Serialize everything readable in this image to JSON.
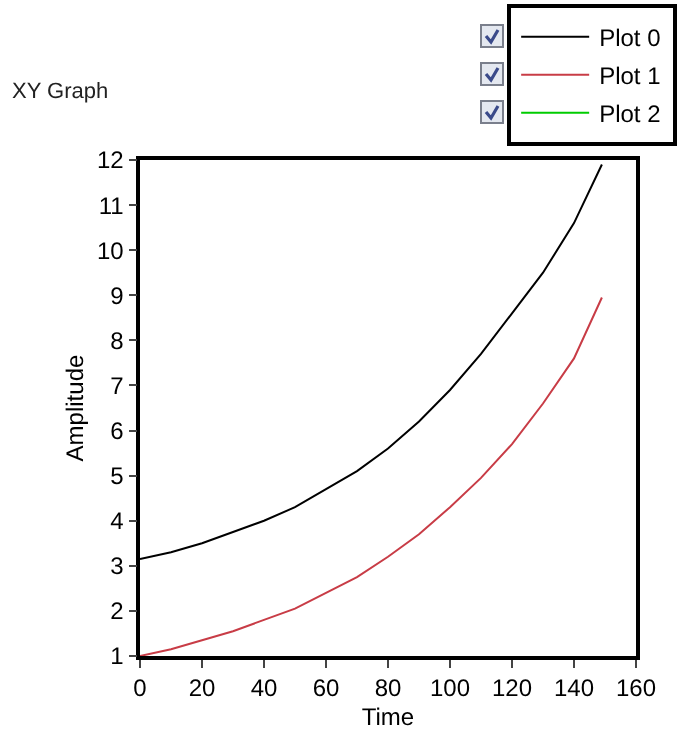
{
  "chart_data": {
    "type": "line",
    "title": "XY Graph",
    "xlabel": "Time",
    "ylabel": "Amplitude",
    "x": [
      0,
      10,
      20,
      30,
      40,
      50,
      60,
      70,
      80,
      90,
      100,
      110,
      120,
      130,
      140,
      149
    ],
    "series": [
      {
        "name": "Plot 0",
        "color": "#000000",
        "values": [
          3.15,
          3.3,
          3.5,
          3.75,
          4.0,
          4.3,
          4.7,
          5.1,
          5.6,
          6.2,
          6.9,
          7.7,
          8.6,
          9.5,
          10.6,
          11.9
        ]
      },
      {
        "name": "Plot 1",
        "color": "#c83c46",
        "values": [
          1.0,
          1.15,
          1.35,
          1.55,
          1.8,
          2.05,
          2.4,
          2.75,
          3.2,
          3.7,
          4.3,
          4.95,
          5.7,
          6.6,
          7.6,
          8.95
        ]
      },
      {
        "name": "Plot 2",
        "color": "#00cc00",
        "values": [
          null,
          null,
          null,
          null,
          null,
          null,
          null,
          null,
          null,
          null,
          null,
          null,
          null,
          null,
          null,
          null
        ]
      }
    ],
    "xlim": [
      0,
      160
    ],
    "xticks": [
      0,
      20,
      40,
      60,
      80,
      100,
      120,
      140,
      160
    ],
    "ylim": [
      1,
      12
    ],
    "yticks": [
      1,
      2,
      3,
      4,
      5,
      6,
      7,
      8,
      9,
      10,
      11,
      12
    ],
    "grid": false,
    "legend": "top right",
    "marker": "none",
    "line_style": "solid"
  }
}
